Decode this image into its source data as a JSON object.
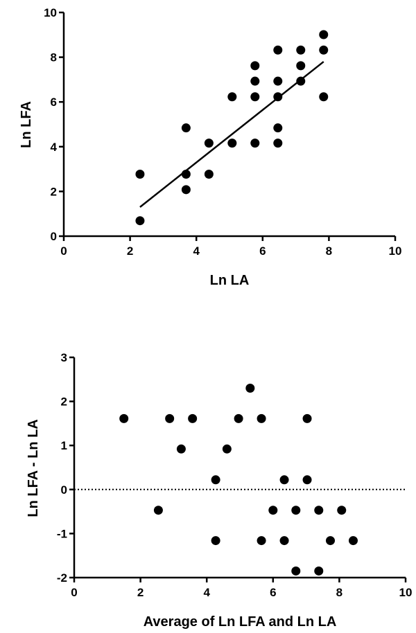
{
  "chart_data": [
    {
      "type": "scatter",
      "title": "",
      "xlabel": "Ln LA",
      "ylabel": "Ln LFA",
      "xlim": [
        0,
        10
      ],
      "ylim": [
        0,
        10
      ],
      "xticks": [
        0,
        2,
        4,
        6,
        8,
        10
      ],
      "yticks": [
        0,
        2,
        4,
        6,
        8,
        10
      ],
      "grid": false,
      "points": [
        {
          "x": 2.3,
          "y": 2.77
        },
        {
          "x": 2.3,
          "y": 0.69
        },
        {
          "x": 3.69,
          "y": 4.84
        },
        {
          "x": 3.69,
          "y": 2.77
        },
        {
          "x": 3.69,
          "y": 2.08
        },
        {
          "x": 4.38,
          "y": 4.16
        },
        {
          "x": 4.38,
          "y": 2.77
        },
        {
          "x": 5.08,
          "y": 6.23
        },
        {
          "x": 5.08,
          "y": 4.16
        },
        {
          "x": 5.77,
          "y": 7.62
        },
        {
          "x": 5.77,
          "y": 6.93
        },
        {
          "x": 5.77,
          "y": 6.23
        },
        {
          "x": 5.77,
          "y": 4.16
        },
        {
          "x": 6.46,
          "y": 8.32
        },
        {
          "x": 6.46,
          "y": 6.93
        },
        {
          "x": 6.46,
          "y": 6.23
        },
        {
          "x": 6.46,
          "y": 4.84
        },
        {
          "x": 6.46,
          "y": 4.16
        },
        {
          "x": 7.15,
          "y": 8.32
        },
        {
          "x": 7.15,
          "y": 7.62
        },
        {
          "x": 7.15,
          "y": 6.93
        },
        {
          "x": 7.84,
          "y": 9.01
        },
        {
          "x": 7.84,
          "y": 8.32
        },
        {
          "x": 7.84,
          "y": 6.23
        }
      ],
      "fit_line": {
        "x": [
          2.3,
          7.84
        ],
        "y": [
          1.3,
          7.8
        ]
      }
    },
    {
      "type": "scatter",
      "title": "",
      "xlabel": "Average of Ln LFA and Ln LA",
      "ylabel": "Ln LFA - Ln LA",
      "xlim": [
        0,
        10
      ],
      "ylim": [
        -2,
        3
      ],
      "xticks": [
        0,
        2,
        4,
        6,
        8,
        10
      ],
      "yticks": [
        -2,
        -1,
        0,
        1,
        2,
        3
      ],
      "grid": false,
      "reference_line": {
        "y": 0,
        "style": "dotted"
      },
      "points": [
        {
          "x": 1.5,
          "y": 1.61
        },
        {
          "x": 2.88,
          "y": 1.61
        },
        {
          "x": 3.57,
          "y": 1.61
        },
        {
          "x": 4.96,
          "y": 1.61
        },
        {
          "x": 5.65,
          "y": 1.61
        },
        {
          "x": 7.03,
          "y": 1.61
        },
        {
          "x": 5.31,
          "y": 2.3
        },
        {
          "x": 3.23,
          "y": 0.92
        },
        {
          "x": 4.61,
          "y": 0.92
        },
        {
          "x": 4.27,
          "y": 0.22
        },
        {
          "x": 6.34,
          "y": 0.22
        },
        {
          "x": 7.03,
          "y": 0.22
        },
        {
          "x": 2.54,
          "y": -0.47
        },
        {
          "x": 6.0,
          "y": -0.47
        },
        {
          "x": 6.69,
          "y": -0.47
        },
        {
          "x": 7.38,
          "y": -0.47
        },
        {
          "x": 8.07,
          "y": -0.47
        },
        {
          "x": 4.27,
          "y": -1.16
        },
        {
          "x": 5.65,
          "y": -1.16
        },
        {
          "x": 6.34,
          "y": -1.16
        },
        {
          "x": 7.73,
          "y": -1.16
        },
        {
          "x": 8.42,
          "y": -1.16
        },
        {
          "x": 6.69,
          "y": -1.85
        },
        {
          "x": 7.38,
          "y": -1.85
        }
      ]
    }
  ]
}
